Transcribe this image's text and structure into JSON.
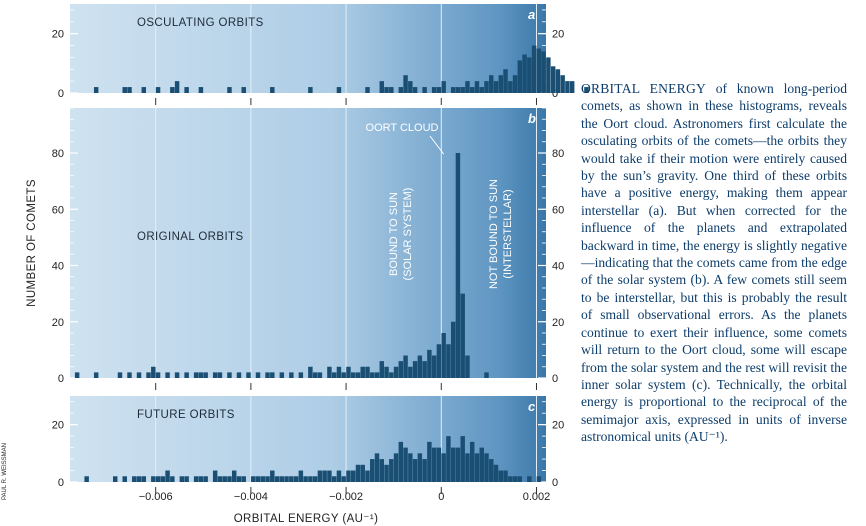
{
  "chart_data": {
    "type": "bar",
    "xlabel": "ORBITAL ENERGY (AU⁻¹)",
    "ylabel": "NUMBER OF COMETS",
    "xlim": [
      -0.0078,
      0.0022
    ],
    "xticks": [
      {
        "value": -0.006,
        "label": "−0.006"
      },
      {
        "value": -0.004,
        "label": "−0.004"
      },
      {
        "value": -0.002,
        "label": "−0.002"
      },
      {
        "value": 0,
        "label": "0"
      },
      {
        "value": 0.002,
        "label": "0.002"
      }
    ],
    "bin_width": 0.0001,
    "bin_start": -0.0078,
    "panels": [
      {
        "letter": "a",
        "title": "OSCULATING ORBITS",
        "ylim": [
          0,
          30
        ],
        "yticks": [
          {
            "value": 0,
            "label": "0"
          },
          {
            "value": 20,
            "label": "20"
          }
        ],
        "counts": [
          0,
          0,
          0,
          0,
          0,
          2,
          0,
          0,
          0,
          0,
          0,
          2,
          2,
          0,
          0,
          2,
          0,
          0,
          2,
          0,
          0,
          2,
          4,
          0,
          2,
          0,
          0,
          2,
          0,
          0,
          0,
          0,
          0,
          2,
          0,
          0,
          2,
          0,
          0,
          0,
          0,
          0,
          2,
          0,
          0,
          0,
          0,
          0,
          0,
          0,
          2,
          0,
          0,
          0,
          0,
          0,
          2,
          0,
          0,
          0,
          0,
          0,
          2,
          0,
          0,
          4,
          2,
          2,
          0,
          2,
          6,
          4,
          2,
          0,
          2,
          0,
          2,
          2,
          4,
          0,
          2,
          2,
          2,
          4,
          2,
          4,
          2,
          4,
          6,
          4,
          6,
          8,
          4,
          6,
          11,
          13,
          12,
          16,
          15,
          14,
          12,
          9,
          8,
          6,
          4,
          4,
          0,
          0,
          2,
          0,
          0,
          0,
          0,
          0,
          0,
          0,
          0,
          0,
          0,
          0,
          0,
          0,
          0
        ]
      },
      {
        "letter": "b",
        "title": "ORIGINAL ORBITS",
        "ylim": [
          0,
          96
        ],
        "yticks": [
          {
            "value": 0,
            "label": "0"
          },
          {
            "value": 20,
            "label": "20"
          },
          {
            "value": 40,
            "label": "40"
          },
          {
            "value": 60,
            "label": "60"
          },
          {
            "value": 80,
            "label": "80"
          }
        ],
        "counts": [
          0,
          2,
          0,
          0,
          0,
          2,
          0,
          0,
          0,
          0,
          2,
          0,
          2,
          0,
          2,
          0,
          2,
          4,
          2,
          0,
          2,
          0,
          2,
          0,
          2,
          0,
          2,
          2,
          2,
          0,
          2,
          2,
          0,
          2,
          0,
          2,
          0,
          2,
          0,
          2,
          0,
          2,
          2,
          0,
          2,
          0,
          2,
          0,
          2,
          0,
          4,
          2,
          2,
          0,
          4,
          2,
          4,
          2,
          4,
          2,
          2,
          4,
          4,
          2,
          2,
          6,
          4,
          2,
          4,
          6,
          8,
          4,
          6,
          8,
          6,
          10,
          8,
          12,
          16,
          12,
          20,
          80,
          30,
          8,
          0,
          0,
          0,
          2,
          0,
          0,
          0,
          0,
          0,
          0,
          0,
          0,
          0,
          0,
          0,
          0,
          0,
          0,
          0,
          0,
          0,
          0,
          0,
          0,
          0,
          0,
          0,
          0,
          0,
          0,
          0,
          0,
          0,
          0,
          0,
          0,
          0,
          0,
          0
        ],
        "annotations": [
          "OORT CLOUD",
          "BOUND TO SUN",
          "(SOLAR SYSTEM)",
          "NOT BOUND TO SUN",
          "(INTERSTELLAR)"
        ]
      },
      {
        "letter": "c",
        "title": "FUTURE ORBITS",
        "ylim": [
          0,
          30
        ],
        "yticks": [
          {
            "value": 0,
            "label": "0"
          },
          {
            "value": 20,
            "label": "20"
          }
        ],
        "counts": [
          0,
          0,
          0,
          2,
          0,
          0,
          0,
          0,
          0,
          2,
          0,
          2,
          0,
          2,
          2,
          2,
          0,
          2,
          2,
          2,
          4,
          2,
          0,
          2,
          2,
          0,
          2,
          2,
          2,
          0,
          4,
          2,
          2,
          2,
          4,
          2,
          2,
          0,
          2,
          2,
          2,
          2,
          4,
          2,
          2,
          2,
          2,
          2,
          4,
          2,
          2,
          2,
          4,
          4,
          4,
          2,
          4,
          2,
          4,
          4,
          6,
          6,
          4,
          8,
          10,
          8,
          6,
          8,
          10,
          14,
          12,
          10,
          8,
          10,
          8,
          14,
          12,
          12,
          10,
          16,
          12,
          12,
          16,
          10,
          14,
          10,
          12,
          10,
          8,
          6,
          4,
          4,
          2,
          2,
          2,
          0,
          2,
          0,
          2,
          0,
          0,
          0,
          0,
          0,
          0,
          0,
          0,
          0,
          0,
          0,
          0,
          0,
          0,
          0,
          0,
          0,
          0,
          0,
          0,
          0,
          0,
          0,
          0
        ]
      }
    ]
  },
  "caption": {
    "lead": "ORBITAL ENERGY",
    "body": " of known long-period comets, as shown in these histograms, reveals the Oort cloud. Astronomers first calculate the osculating orbits of the comets—the orbits they would take if their motion were entirely caused by the sun’s gravity. One third of these orbits have a positive energy, making them appear interstellar (a). But when corrected for the influence of the planets and extrapolated backward in time, the energy is slightly negative—indicating that the comets came from the edge of the solar system (b). A few comets still seem to be interstellar, but this is probably the result of small observational errors. As the planets continue to exert their influence, some comets will return to the Oort cloud, some will escape from the solar system and the rest will revisit the inner solar system (c). Technically, the orbital energy is proportional to the reciprocal of the semimajor axis, expressed in units of inverse astronomical units (AU⁻¹)."
  },
  "credit": "PAUL R. WEISSMAN",
  "colors": {
    "bar": "#1a4f73",
    "panel_light": "#cfe2f0",
    "panel_dark": "#3d7bab",
    "caption": "#0d3d6b"
  }
}
